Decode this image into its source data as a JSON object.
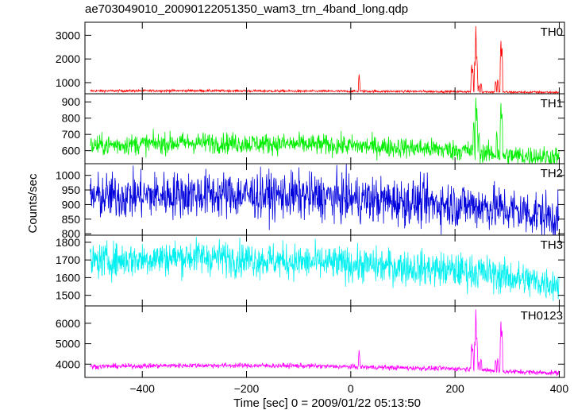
{
  "chart_data": {
    "type": "line",
    "title": "ae703049010_20090122051350_wam3_trn_4band_long.qdp",
    "xlabel": "Time [sec] 0 = 2009/01/22 05:13:50",
    "ylabel": "Counts/sec",
    "xlim": [
      -510,
      410
    ],
    "xticks": [
      -400,
      -200,
      0,
      200,
      400
    ],
    "xtick_labels": [
      "−400",
      "−200",
      "0",
      "200",
      "400"
    ],
    "panels": [
      {
        "name": "TH0",
        "color": "#ff0000",
        "ylim": [
          530,
          3550
        ],
        "yticks": [
          1000,
          2000,
          3000
        ],
        "ytick_labels": [
          "1000",
          "2000",
          "3000"
        ],
        "baseline": [
          [
            -510,
            650
          ],
          [
            -300,
            660
          ],
          [
            -100,
            640
          ],
          [
            100,
            630
          ],
          [
            230,
            620
          ],
          [
            300,
            600
          ],
          [
            410,
            590
          ]
        ],
        "noise": 25,
        "spikes": [
          [
            16,
            1380
          ],
          [
            232,
            1850
          ],
          [
            234,
            1700
          ],
          [
            238,
            2000
          ],
          [
            240,
            3500
          ],
          [
            242,
            2100
          ],
          [
            246,
            900
          ],
          [
            250,
            1000
          ],
          [
            278,
            1100
          ],
          [
            282,
            1150
          ],
          [
            288,
            2950
          ],
          [
            290,
            2700
          ]
        ]
      },
      {
        "name": "TH1",
        "color": "#00ee00",
        "ylim": [
          520,
          950
        ],
        "yticks": [
          600,
          700,
          800,
          900
        ],
        "ytick_labels": [
          "600",
          "700",
          "800",
          "900"
        ],
        "baseline": [
          [
            -510,
            630
          ],
          [
            -300,
            650
          ],
          [
            -100,
            640
          ],
          [
            100,
            620
          ],
          [
            220,
            600
          ],
          [
            300,
            570
          ],
          [
            410,
            560
          ]
        ],
        "noise": 32,
        "spikes": [
          [
            236,
            800
          ],
          [
            240,
            940
          ],
          [
            242,
            860
          ],
          [
            246,
            720
          ],
          [
            280,
            730
          ],
          [
            288,
            920
          ],
          [
            290,
            860
          ]
        ]
      },
      {
        "name": "TH2",
        "color": "#0000dd",
        "ylim": [
          795,
          1040
        ],
        "yticks": [
          800,
          850,
          900,
          950,
          1000
        ],
        "ytick_labels": [
          "800",
          "850",
          "900",
          "950",
          "1000"
        ],
        "baseline": [
          [
            -510,
            925
          ],
          [
            -300,
            935
          ],
          [
            -100,
            930
          ],
          [
            100,
            910
          ],
          [
            250,
            895
          ],
          [
            350,
            870
          ],
          [
            410,
            850
          ]
        ],
        "noise": 40,
        "spikes": []
      },
      {
        "name": "TH3",
        "color": "#00f0f0",
        "ylim": [
          1440,
          1840
        ],
        "yticks": [
          1500,
          1600,
          1700,
          1800
        ],
        "ytick_labels": [
          "1500",
          "1600",
          "1700",
          "1800"
        ],
        "baseline": [
          [
            -510,
            1690
          ],
          [
            -300,
            1720
          ],
          [
            -100,
            1690
          ],
          [
            100,
            1660
          ],
          [
            250,
            1630
          ],
          [
            350,
            1580
          ],
          [
            410,
            1560
          ]
        ],
        "noise": 50,
        "spikes": []
      },
      {
        "name": "TH0123",
        "color": "#ff00ff",
        "ylim": [
          3350,
          6850
        ],
        "yticks": [
          4000,
          5000,
          6000
        ],
        "ytick_labels": [
          "4000",
          "5000",
          "6000"
        ],
        "baseline": [
          [
            -510,
            3880
          ],
          [
            -300,
            3940
          ],
          [
            -100,
            3920
          ],
          [
            100,
            3820
          ],
          [
            230,
            3760
          ],
          [
            300,
            3640
          ],
          [
            410,
            3560
          ]
        ],
        "noise": 60,
        "spikes": [
          [
            16,
            4720
          ],
          [
            232,
            5100
          ],
          [
            234,
            4900
          ],
          [
            238,
            5200
          ],
          [
            240,
            6800
          ],
          [
            242,
            5300
          ],
          [
            246,
            4150
          ],
          [
            250,
            4300
          ],
          [
            278,
            4250
          ],
          [
            282,
            4300
          ],
          [
            288,
            6300
          ],
          [
            290,
            5900
          ]
        ]
      }
    ]
  }
}
